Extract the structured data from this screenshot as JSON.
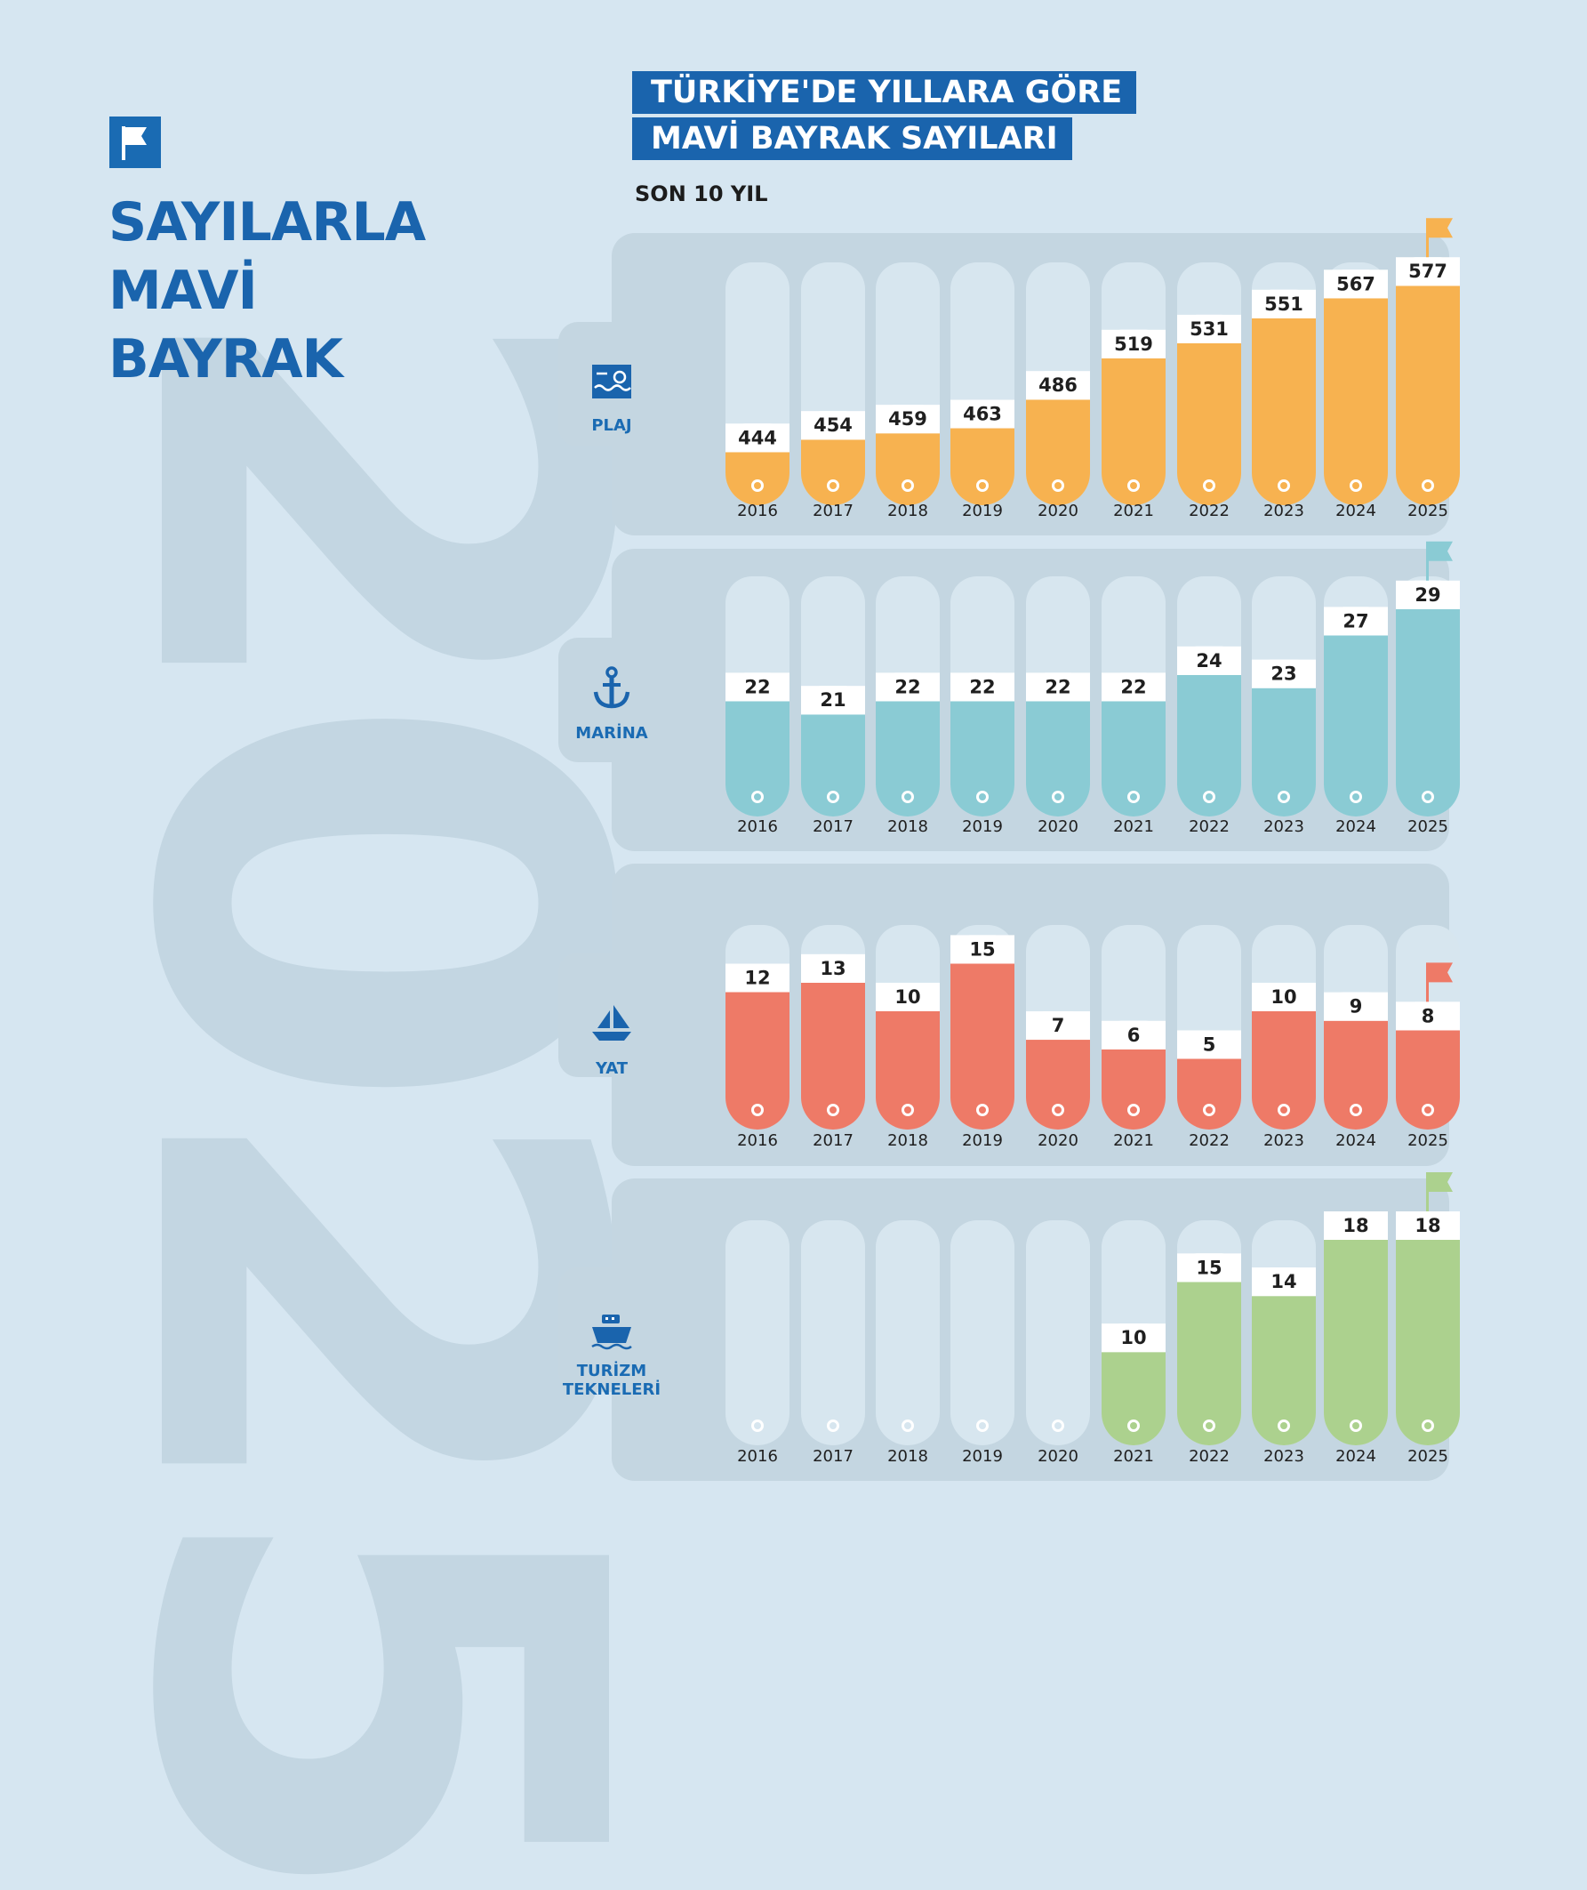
{
  "background_text": "2025",
  "main_title": {
    "line1": "SAYILARLA",
    "line2": "MAVİ",
    "line3": "BAYRAK"
  },
  "header": {
    "line1": "TÜRKİYE'DE YILLARA GÖRE",
    "line2": "MAVİ BAYRAK SAYILARI",
    "subtitle": "SON 10 YIL"
  },
  "colors": {
    "background": "#d6e6f1",
    "panel": "#c4d6e1",
    "track": "#d7e6ef",
    "brand_blue": "#1a64ad",
    "plaj": "#f7b250",
    "marina": "#8acbd4",
    "yat": "#ee7a67",
    "turizm": "#acd18e"
  },
  "chart_data": [
    {
      "type": "bar",
      "series_name": "PLAJ",
      "icon": "beach-icon",
      "categories": [
        "2016",
        "2017",
        "2018",
        "2019",
        "2020",
        "2021",
        "2022",
        "2023",
        "2024",
        "2025"
      ],
      "values": [
        444,
        454,
        459,
        463,
        486,
        519,
        531,
        551,
        567,
        577
      ],
      "ylim": [
        420,
        580
      ]
    },
    {
      "type": "bar",
      "series_name": "MARİNA",
      "icon": "anchor-icon",
      "categories": [
        "2016",
        "2017",
        "2018",
        "2019",
        "2020",
        "2021",
        "2022",
        "2023",
        "2024",
        "2025"
      ],
      "values": [
        22,
        21,
        22,
        22,
        22,
        22,
        24,
        23,
        27,
        29
      ],
      "ylim": [
        15,
        30
      ]
    },
    {
      "type": "bar",
      "series_name": "YAT",
      "icon": "sailboat-icon",
      "categories": [
        "2016",
        "2017",
        "2018",
        "2019",
        "2020",
        "2021",
        "2022",
        "2023",
        "2024",
        "2025"
      ],
      "values": [
        12,
        13,
        10,
        15,
        7,
        6,
        5,
        10,
        9,
        8
      ],
      "ylim": [
        0,
        17
      ]
    },
    {
      "type": "bar",
      "series_name": "TURİZM TEKNELERİ",
      "icon": "boat-icon",
      "categories": [
        "2016",
        "2017",
        "2018",
        "2019",
        "2020",
        "2021",
        "2022",
        "2023",
        "2024",
        "2025"
      ],
      "values": [
        null,
        null,
        null,
        null,
        null,
        10,
        15,
        14,
        18,
        18
      ],
      "ylim": [
        5,
        18
      ]
    }
  ]
}
